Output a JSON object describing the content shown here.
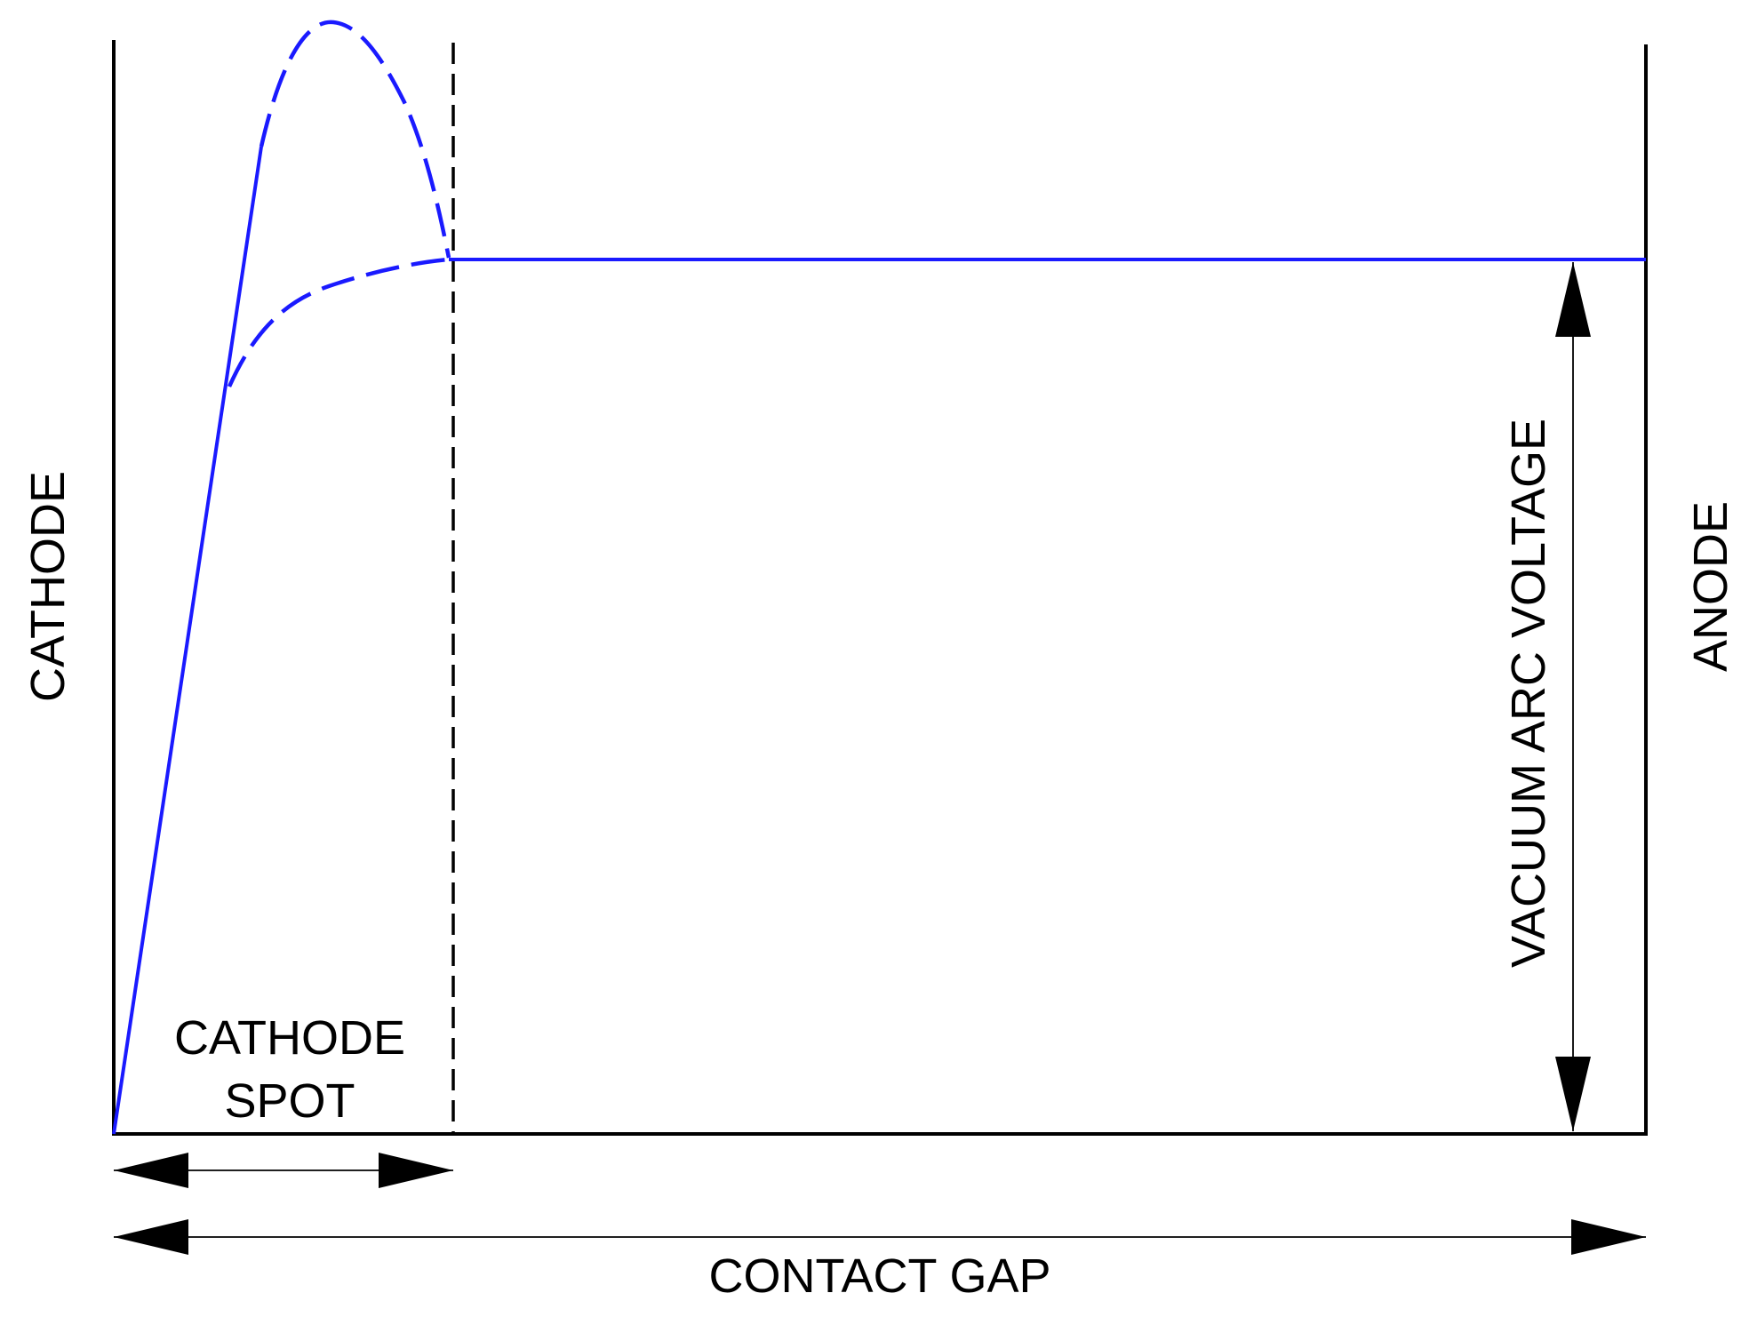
{
  "labels": {
    "cathode": "CATHODE",
    "anode": "ANODE",
    "cathode_spot_line1": "CATHODE",
    "cathode_spot_line2": "SPOT",
    "vacuum_arc_voltage": "VACUUM ARC VOLTAGE",
    "contact_gap": "CONTACT GAP"
  },
  "colors": {
    "curve": "#1a1aff",
    "frame": "#000000",
    "background": "#ffffff"
  }
}
